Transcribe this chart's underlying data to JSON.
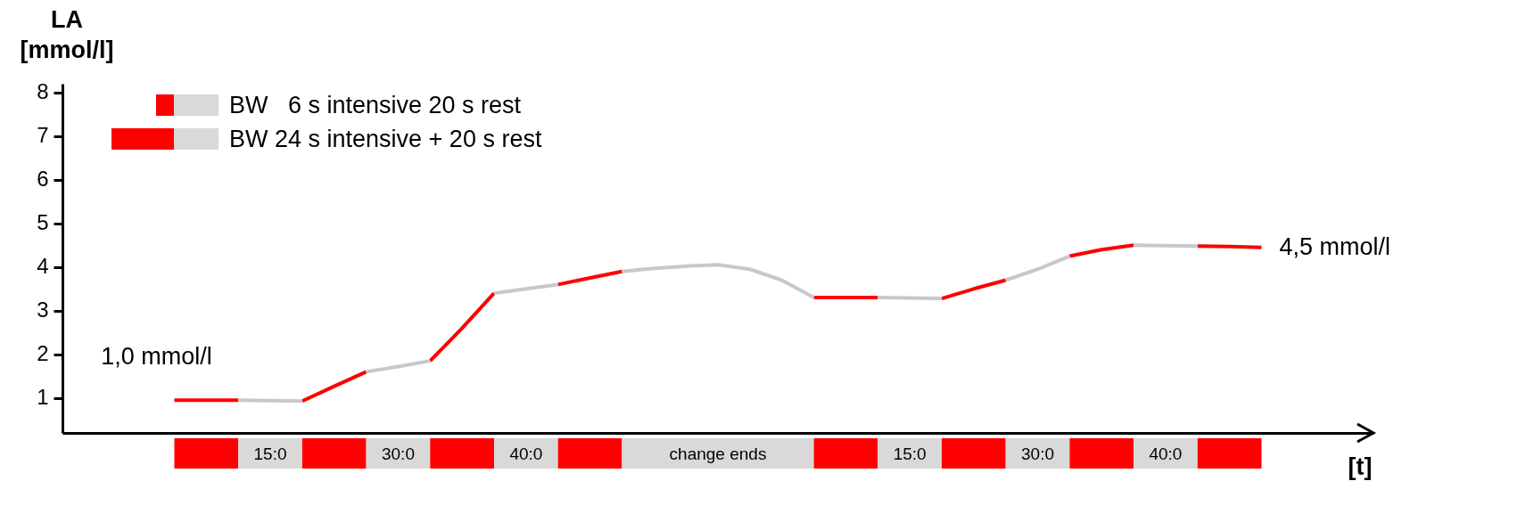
{
  "chart_data": {
    "type": "line",
    "ylabel": "LA [mmol/l]",
    "xlabel": "[t]",
    "categories": [
      null,
      null,
      null,
      null,
      null,
      null,
      null,
      null,
      null,
      null,
      null,
      null,
      null,
      null,
      null,
      null,
      null,
      null,
      null,
      null,
      null,
      null,
      null,
      null,
      null,
      null,
      null,
      null,
      null,
      null,
      null,
      null,
      null,
      null,
      null,
      null,
      null,
      null,
      null,
      null,
      null
    ],
    "ylim": [
      0.2,
      8.2
    ],
    "yticks": [
      1,
      2,
      3,
      4,
      5,
      6,
      7,
      8
    ],
    "annotations": [
      "BW   6 s intensive 20 s rest",
      "BW 24 s intensive + 20 s rest",
      "1,0 mmol/l",
      "4,5 mmol/l",
      "15:0",
      "30:0",
      "40:0",
      "change ends",
      "15:0",
      "30:0",
      "40:0"
    ],
    "series": [
      {
        "color": "#ff0000",
        "values": [
          null,
          null,
          null,
          0.95,
          0.95,
          0.95,
          null,
          0.93,
          1.27,
          1.6,
          null,
          1.85,
          2.6,
          3.4,
          null,
          3.6,
          3.75,
          3.9,
          null,
          null,
          null,
          null,
          null,
          3.3,
          3.3,
          3.3,
          null,
          3.28,
          3.5,
          3.7,
          null,
          4.25,
          4.4,
          4.5,
          null,
          4.48,
          4.47,
          4.45,
          null,
          null,
          null
        ]
      },
      {
        "color": "#c8c8c8",
        "values": [
          null,
          null,
          null,
          null,
          null,
          0.95,
          0.94,
          0.93,
          null,
          1.6,
          1.72,
          1.85,
          null,
          3.4,
          3.5,
          3.6,
          null,
          3.9,
          3.97,
          4.02,
          4.05,
          3.95,
          3.7,
          3.3,
          null,
          3.3,
          3.29,
          3.28,
          null,
          3.7,
          3.95,
          4.25,
          null,
          4.5,
          4.49,
          4.48,
          null,
          null,
          null,
          null,
          null
        ]
      }
    ]
  }
}
